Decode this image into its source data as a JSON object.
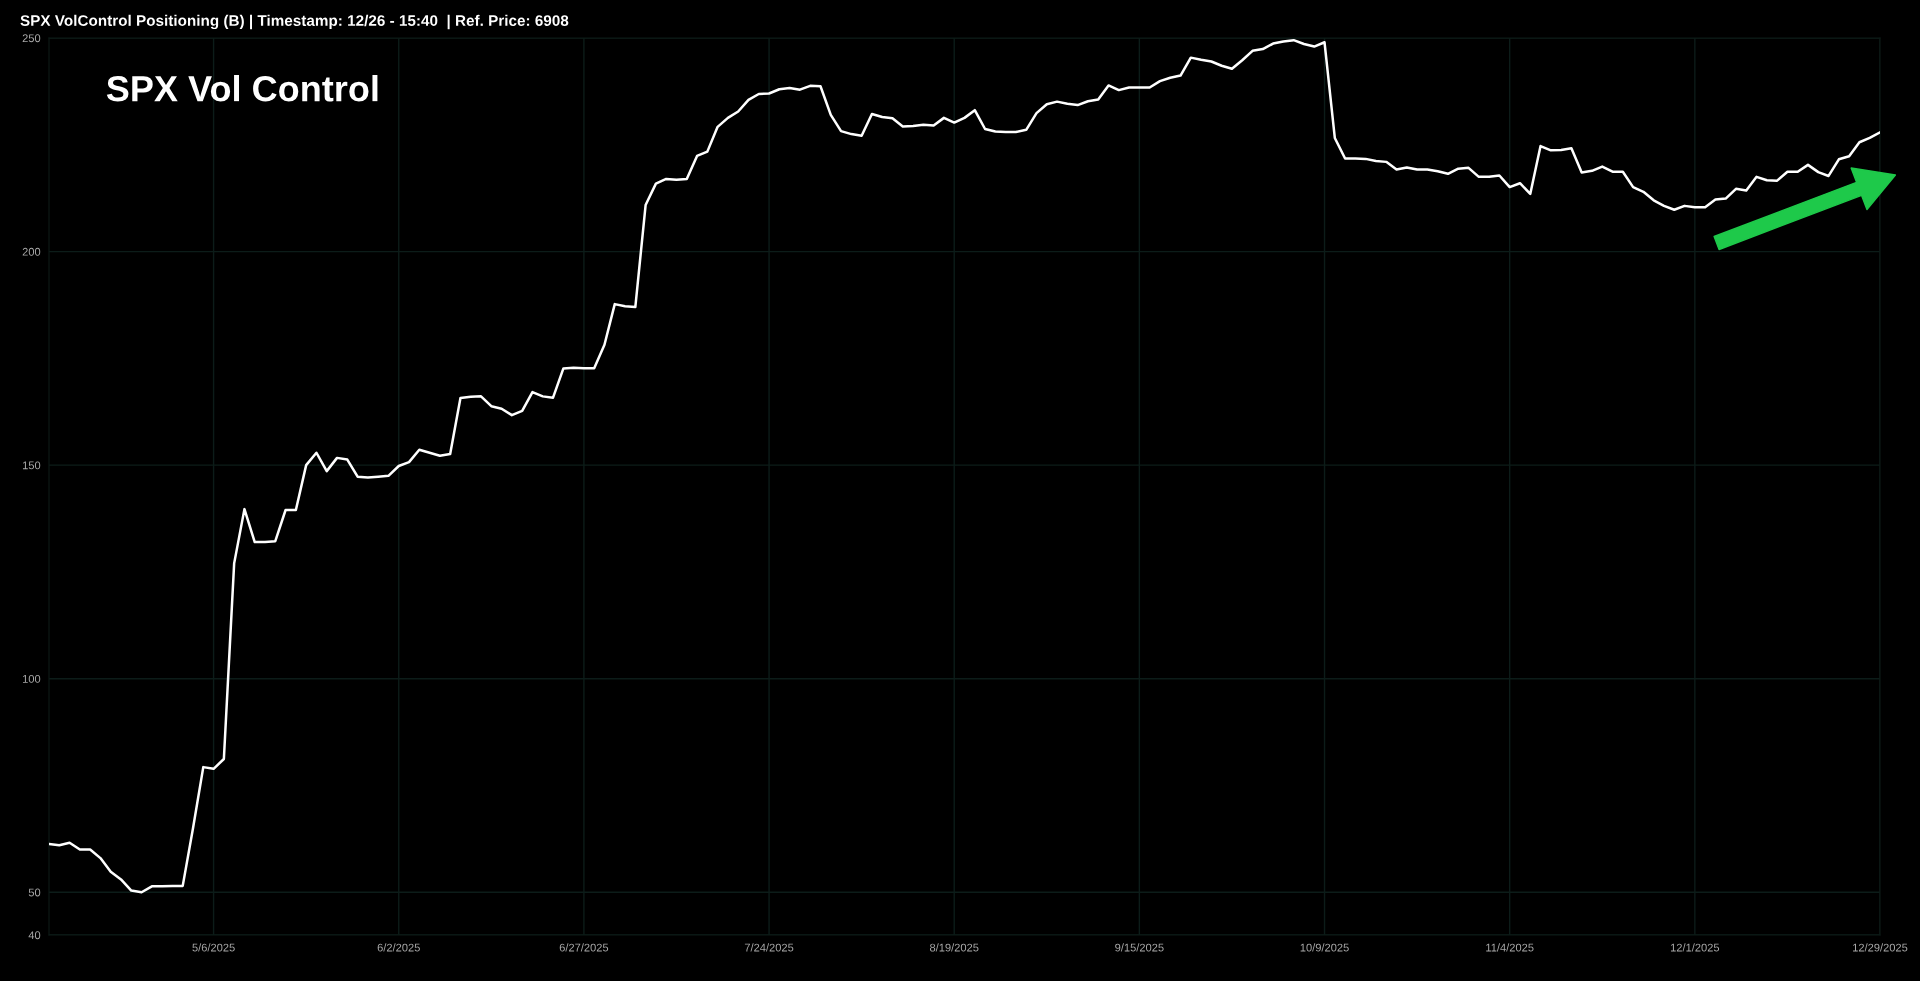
{
  "chart_data": {
    "type": "line",
    "title": "SPX VolControl Positioning (B) | Timestamp: 12/26 - 15:40  | Ref. Price: 6908",
    "annotations": [
      "SPX Vol Control"
    ],
    "categories": [
      null,
      null,
      null,
      null,
      null,
      null,
      null,
      null,
      null,
      null,
      null,
      null,
      null,
      null,
      null,
      null,
      "5/6/2025",
      null,
      null,
      null,
      null,
      null,
      null,
      null,
      null,
      null,
      null,
      null,
      null,
      null,
      null,
      null,
      null,
      null,
      "6/2/2025",
      null,
      null,
      null,
      null,
      null,
      null,
      null,
      null,
      null,
      null,
      null,
      null,
      null,
      null,
      null,
      null,
      null,
      "6/27/2025",
      null,
      null,
      null,
      null,
      null,
      null,
      null,
      null,
      null,
      null,
      null,
      null,
      null,
      null,
      null,
      null,
      null,
      "7/24/2025",
      null,
      null,
      null,
      null,
      null,
      null,
      null,
      null,
      null,
      null,
      null,
      null,
      null,
      null,
      null,
      null,
      null,
      "8/19/2025",
      null,
      null,
      null,
      null,
      null,
      null,
      null,
      null,
      null,
      null,
      null,
      null,
      null,
      null,
      null,
      null,
      null,
      "9/15/2025",
      null,
      null,
      null,
      null,
      null,
      null,
      null,
      null,
      null,
      null,
      null,
      null,
      null,
      null,
      null,
      null,
      null,
      "10/9/2025",
      null,
      null,
      null,
      null,
      null,
      null,
      null,
      null,
      null,
      null,
      null,
      null,
      null,
      null,
      null,
      null,
      null,
      "11/4/2025",
      null,
      null,
      null,
      null,
      null,
      null,
      null,
      null,
      null,
      null,
      null,
      null,
      null,
      null,
      null,
      null,
      null,
      "12/1/2025",
      null,
      null,
      null,
      null,
      null,
      null,
      null,
      null,
      null,
      null,
      null,
      null,
      null,
      null,
      null,
      null,
      null,
      "12/29/2025"
    ],
    "series": [
      {
        "color": "#ffffff",
        "values": [
          61.3,
          61,
          61.6,
          60,
          60,
          58,
          54.8,
          53,
          50.4,
          50,
          51.4,
          51.4,
          51.5,
          51.5,
          65,
          79.3,
          78.9,
          81.2,
          127,
          139.7,
          132,
          132,
          132.2,
          139.5,
          139.5,
          150,
          152.9,
          148.6,
          151.7,
          151.3,
          147.3,
          147.1,
          147.3,
          147.5,
          149.8,
          150.7,
          153.6,
          152.9,
          152.2,
          152.6,
          165.7,
          166,
          166.1,
          163.8,
          163.2,
          161.7,
          162.7,
          167.1,
          166.1,
          165.8,
          172.6,
          172.8,
          172.7,
          172.7,
          178.2,
          187.7,
          187.2,
          187,
          210.9,
          215.9,
          217,
          216.8,
          217,
          222.4,
          223.4,
          229.2,
          231.3,
          232.8,
          235.5,
          236.9,
          237,
          238,
          238.3,
          237.9,
          238.8,
          238.7,
          232,
          228.2,
          227.5,
          227.1,
          232.2,
          231.5,
          231.2,
          229.3,
          229.4,
          229.7,
          229.5,
          231.3,
          230.2,
          231.3,
          233.1,
          228.7,
          228.1,
          228,
          228,
          228.5,
          232.4,
          234.5,
          235.1,
          234.6,
          234.3,
          235.2,
          235.6,
          238.9,
          237.8,
          238.4,
          238.4,
          238.4,
          239.9,
          240.7,
          241.2,
          245.4,
          244.9,
          244.5,
          243.5,
          242.8,
          244.8,
          247,
          247.4,
          248.7,
          249.2,
          249.5,
          248.6,
          248,
          249,
          226.6,
          221.8,
          221.8,
          221.7,
          221.2,
          221,
          219.2,
          219.7,
          219.2,
          219.2,
          218.8,
          218.2,
          219.4,
          219.6,
          217.5,
          217.5,
          217.8,
          215.1,
          216,
          213.5,
          224.7,
          223.7,
          223.8,
          224.2,
          218.5,
          218.9,
          219.9,
          218.7,
          218.7,
          215.1,
          214,
          212,
          210.7,
          209.8,
          210.7,
          210.4,
          210.4,
          212.2,
          212.4,
          214.7,
          214.3,
          217.5,
          216.7,
          216.6,
          218.7,
          218.7,
          220.3,
          218.6,
          217.7,
          221.6,
          222.3,
          225.6,
          226.6,
          227.9
        ]
      }
    ],
    "ylim": [
      40,
      250
    ],
    "yticks": [
      40,
      50,
      100,
      150,
      200,
      250
    ],
    "grid": true,
    "marker": "none",
    "line_style": "solid"
  }
}
